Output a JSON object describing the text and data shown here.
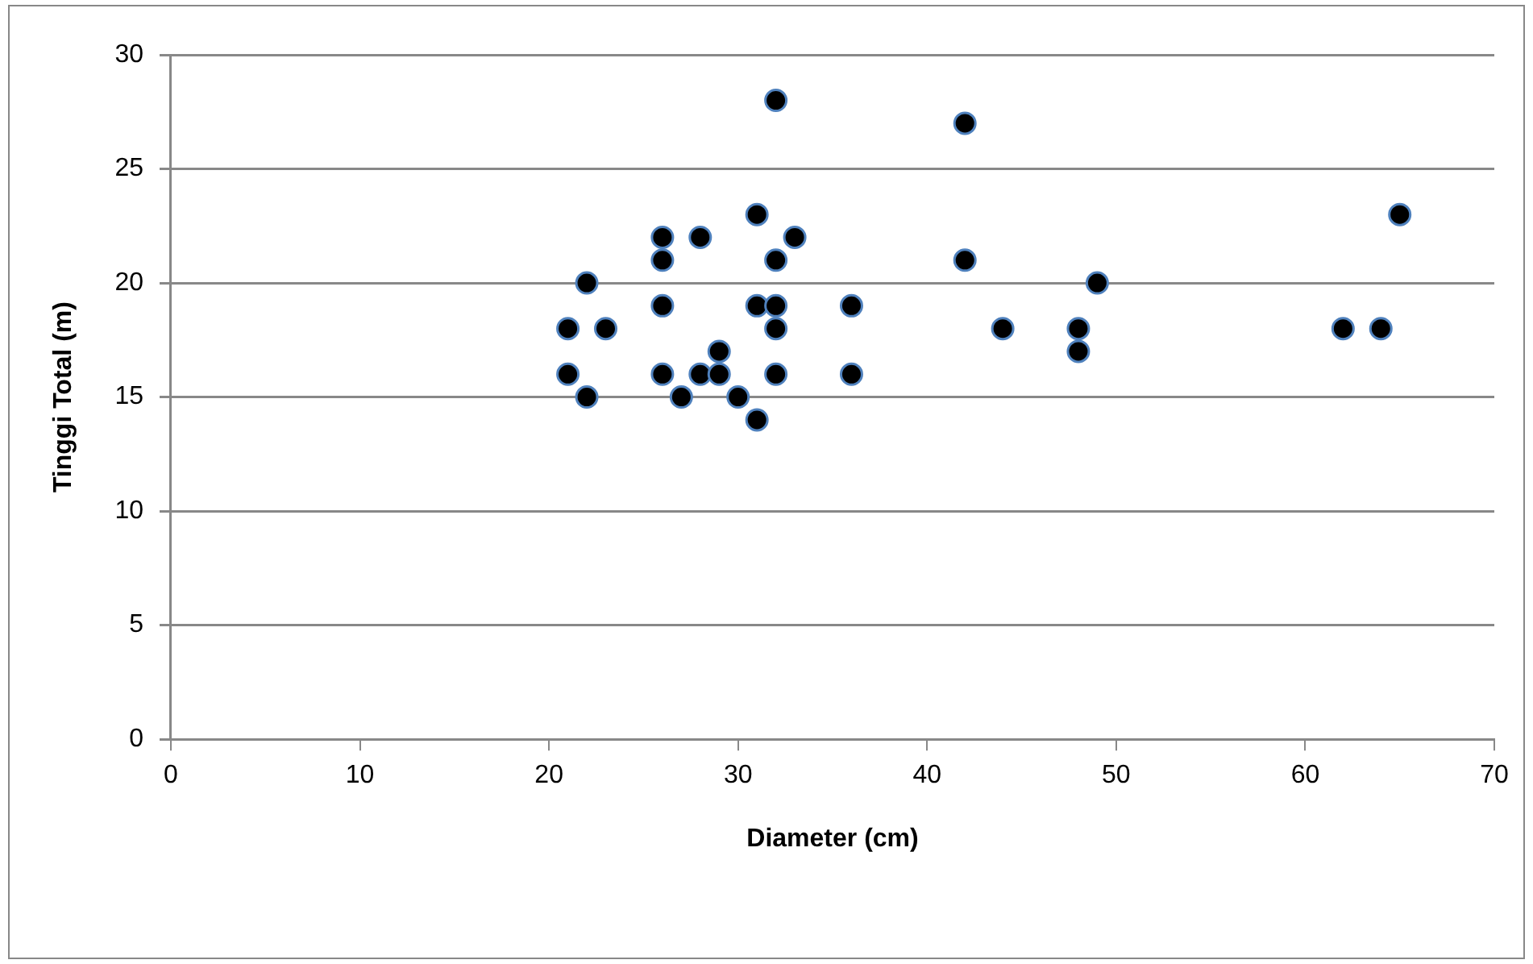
{
  "chart_data": {
    "type": "scatter",
    "xlabel": "Diameter (cm)",
    "ylabel": "Tinggi Total (m)",
    "x": [
      21,
      21,
      22,
      22,
      23,
      26,
      26,
      26,
      26,
      27,
      28,
      28,
      29,
      29,
      30,
      31,
      31,
      31,
      32,
      32,
      32,
      32,
      32,
      33,
      36,
      36,
      42,
      42,
      44,
      48,
      48,
      49,
      62,
      64,
      65
    ],
    "series": [
      {
        "color": "#000000",
        "values": [
          18,
          16,
          20,
          15,
          18,
          22,
          21,
          19,
          16,
          15,
          22,
          16,
          17,
          16,
          15,
          23,
          19,
          14,
          28,
          21,
          19,
          18,
          16,
          22,
          19,
          16,
          27,
          21,
          18,
          18,
          17,
          20,
          18,
          18,
          23
        ]
      }
    ],
    "xlim": [
      0,
      70
    ],
    "xticks": [
      0,
      10,
      20,
      30,
      40,
      50,
      60,
      70
    ],
    "ylim": [
      0,
      30
    ],
    "yticks": [
      0,
      5,
      10,
      15,
      20,
      25,
      30
    ],
    "grid": "y",
    "legend": false,
    "marker": "circle"
  }
}
